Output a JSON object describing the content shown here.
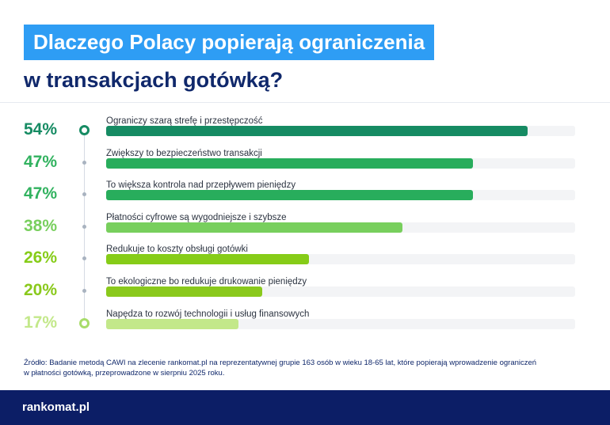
{
  "title_line1": "Dlaczego Polacy popierają ograniczenia",
  "title_line2": "w transakcjach gotówką?",
  "source": "Źródło: Badanie metodą CAWI na zlecenie rankomat.pl na reprezentatywnej grupie 163 osób w wieku 18-65 lat, które popierają wprowadzenie ograniczeń w płatności gotówką, przeprowadzone w sierpniu 2025 roku.",
  "logo": "rankomat.pl",
  "colors": {
    "title_bg": "#2e9df4",
    "title_text": "#10286b",
    "footer_bg": "#0c1e66",
    "track": "#f3f4f6"
  },
  "chart_data": {
    "type": "bar",
    "orientation": "horizontal",
    "xlim": [
      0,
      100
    ],
    "grid": false,
    "unit": "%",
    "categories": [
      "Ograniczy szarą strefę i przestępczość",
      "Zwiększy to bezpieczeństwo transakcji",
      "To większa kontrola nad przepływem pieniędzy",
      "Płatności cyfrowe są wygodniejsze i szybsze",
      "Redukuje to koszty obsługi gotówki",
      "To ekologiczne bo redukuje drukowanie pieniędzy",
      "Napędza to rozwój technologii i usług finansowych"
    ],
    "values": [
      54,
      47,
      47,
      38,
      26,
      20,
      17
    ],
    "value_labels": [
      "54%",
      "47%",
      "47%",
      "38%",
      "26%",
      "20%",
      "17%"
    ],
    "bar_colors": [
      "#168b63",
      "#28ad5c",
      "#28ad5c",
      "#78cf5d",
      "#86cc18",
      "#8ac91c",
      "#c3e88a"
    ],
    "label_colors": [
      "#168b63",
      "#31b25f",
      "#31b25f",
      "#78cf5d",
      "#86cc18",
      "#8ac91c",
      "#c3e88a"
    ]
  }
}
